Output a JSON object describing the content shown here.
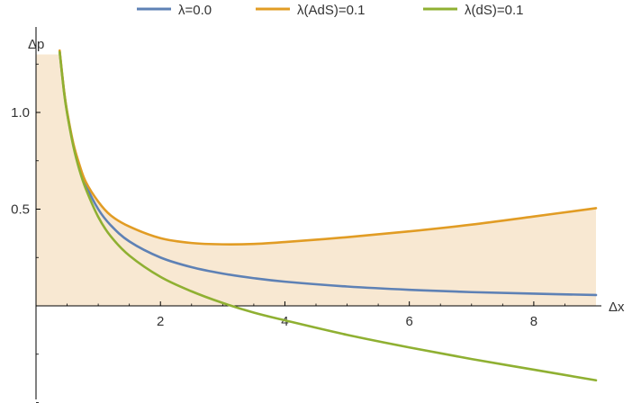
{
  "chart_data": {
    "type": "line",
    "title": "",
    "xlabel": "Δx",
    "ylabel": "Δp",
    "xlim": [
      0,
      9
    ],
    "ylim": [
      -0.5,
      1.3
    ],
    "x_ticks": [
      2,
      4,
      6,
      8
    ],
    "x_tick_labels": [
      "2",
      "4",
      "6",
      "8"
    ],
    "y_ticks": [
      0.5,
      1.0
    ],
    "y_tick_labels": [
      "0.5",
      "1.0"
    ],
    "y_minor_ticks": [
      -0.5,
      -0.25,
      0.25,
      0.75,
      1.25
    ],
    "grid": false,
    "legend_position": "top",
    "shaded_region": {
      "description_source": "area under λ(AdS)=0.1 curve",
      "color": "#F8E8D2"
    },
    "series": [
      {
        "name": "λ=0.0",
        "color": "#5E81B5",
        "x": [
          0.38,
          0.45,
          0.5,
          0.6,
          0.7,
          0.8,
          1.0,
          1.2,
          1.5,
          2.0,
          2.5,
          3.0,
          3.5,
          4.0,
          5.0,
          6.0,
          7.0,
          8.0,
          9.0
        ],
        "y": [
          1.316,
          1.111,
          1.0,
          0.833,
          0.714,
          0.625,
          0.5,
          0.417,
          0.333,
          0.25,
          0.2,
          0.167,
          0.143,
          0.125,
          0.1,
          0.083,
          0.071,
          0.063,
          0.056
        ]
      },
      {
        "name": "λ(AdS)=0.1",
        "color": "#E19C24",
        "x": [
          0.38,
          0.45,
          0.5,
          0.6,
          0.7,
          0.8,
          1.0,
          1.2,
          1.5,
          2.0,
          2.5,
          3.0,
          3.5,
          4.0,
          5.0,
          6.0,
          7.0,
          8.0,
          9.0
        ],
        "y": [
          1.32,
          1.115,
          1.005,
          0.84,
          0.728,
          0.641,
          0.539,
          0.468,
          0.41,
          0.35,
          0.325,
          0.318,
          0.32,
          0.33,
          0.355,
          0.385,
          0.42,
          0.462,
          0.505
        ]
      },
      {
        "name": "λ(dS)=0.1",
        "color": "#8FB032",
        "x": [
          0.38,
          0.45,
          0.5,
          0.6,
          0.7,
          0.8,
          1.0,
          1.2,
          1.5,
          2.0,
          2.5,
          3.0,
          3.5,
          4.0,
          5.0,
          6.0,
          7.0,
          8.0,
          9.0
        ],
        "y": [
          1.312,
          1.105,
          0.995,
          0.825,
          0.7,
          0.605,
          0.46,
          0.36,
          0.26,
          0.15,
          0.075,
          0.015,
          -0.035,
          -0.075,
          -0.15,
          -0.215,
          -0.275,
          -0.33,
          -0.385
        ]
      }
    ]
  }
}
